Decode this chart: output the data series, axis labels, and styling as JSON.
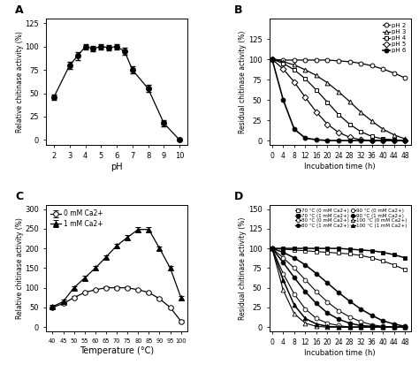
{
  "A": {
    "pH": [
      2,
      3,
      3.5,
      4,
      4.5,
      5,
      5.5,
      6,
      6.5,
      7,
      8,
      9,
      10
    ],
    "activity": [
      46,
      80,
      90,
      100,
      98,
      100,
      99,
      100,
      95,
      75,
      55,
      18,
      0
    ],
    "yerr": [
      3,
      4,
      4,
      3,
      3,
      3,
      3,
      3,
      4,
      4,
      4,
      3,
      1
    ],
    "ylabel": "Relative chitinase activity (%)",
    "xlabel": "pH",
    "ylim": [
      -5,
      130
    ],
    "yticks": [
      0,
      25,
      50,
      75,
      100,
      125
    ],
    "xticks": [
      2,
      3,
      4,
      5,
      6,
      7,
      8,
      9,
      10
    ],
    "xlim": [
      1.5,
      10.5
    ]
  },
  "B": {
    "time": [
      0,
      4,
      8,
      12,
      16,
      20,
      24,
      28,
      32,
      36,
      40,
      44,
      48
    ],
    "series": {
      "pH 2": [
        100,
        99,
        99,
        99,
        99,
        99,
        98,
        97,
        95,
        92,
        88,
        83,
        77
      ],
      "pH 3": [
        100,
        97,
        93,
        87,
        80,
        71,
        60,
        48,
        35,
        24,
        14,
        7,
        2
      ],
      "pH 4": [
        100,
        95,
        87,
        76,
        62,
        47,
        32,
        20,
        11,
        5,
        2,
        1,
        0
      ],
      "pH 5": [
        100,
        88,
        72,
        53,
        35,
        20,
        10,
        4,
        1,
        0,
        0,
        0,
        0
      ],
      "pH 6": [
        100,
        50,
        14,
        3,
        1,
        0,
        0,
        0,
        0,
        0,
        0,
        0,
        0
      ]
    },
    "markers": {
      "pH 2": "o",
      "pH 3": "^",
      "pH 4": "s",
      "pH 5": "D",
      "pH 6": "o"
    },
    "filled": {
      "pH 2": false,
      "pH 3": false,
      "pH 4": false,
      "pH 5": false,
      "pH 6": true
    },
    "ylabel": "Residual chitinase activity (%)",
    "xlabel": "Incubation time (h)",
    "ylim": [
      -5,
      150
    ],
    "yticks": [
      0,
      25,
      50,
      75,
      100,
      125
    ],
    "xlim": [
      -1,
      50
    ],
    "xticks": [
      0,
      4,
      8,
      12,
      16,
      20,
      24,
      28,
      32,
      36,
      40,
      44,
      48
    ]
  },
  "C": {
    "temp": [
      40,
      45,
      50,
      55,
      60,
      65,
      70,
      75,
      80,
      85,
      90,
      95,
      100
    ],
    "series": {
      "0 mM Ca2+": [
        50,
        60,
        75,
        88,
        95,
        100,
        100,
        100,
        95,
        88,
        72,
        50,
        15
      ],
      "1 mM Ca2+": [
        52,
        65,
        100,
        125,
        150,
        178,
        207,
        228,
        248,
        248,
        200,
        150,
        75
      ]
    },
    "yerr": {
      "0 mM Ca2+": [
        3,
        3,
        3,
        3,
        3,
        3,
        3,
        3,
        3,
        3,
        3,
        3,
        3
      ],
      "1 mM Ca2+": [
        4,
        4,
        4,
        5,
        5,
        5,
        5,
        5,
        5,
        5,
        5,
        5,
        5
      ]
    },
    "ylabel": "Relative chitinase activity (%)",
    "xlabel": "Temperature (°C)",
    "ylim": [
      -10,
      310
    ],
    "yticks": [
      0,
      50,
      100,
      150,
      200,
      250,
      300
    ],
    "xticks": [
      40,
      45,
      50,
      55,
      60,
      65,
      70,
      75,
      80,
      85,
      90,
      95,
      100
    ],
    "xlim": [
      37,
      103
    ]
  },
  "D": {
    "time": [
      0,
      4,
      8,
      12,
      16,
      20,
      24,
      28,
      32,
      36,
      40,
      44,
      48
    ],
    "series": {
      "70C_0mM": [
        100,
        99,
        98,
        97,
        96,
        95,
        94,
        93,
        91,
        88,
        84,
        79,
        73
      ],
      "70C_1mM": [
        100,
        100,
        100,
        100,
        100,
        100,
        100,
        99,
        98,
        97,
        95,
        92,
        88
      ],
      "80C_0mM": [
        100,
        88,
        75,
        60,
        45,
        32,
        21,
        13,
        7,
        3,
        1,
        0,
        0
      ],
      "80C_1mM": [
        100,
        95,
        88,
        79,
        68,
        56,
        44,
        33,
        23,
        15,
        8,
        4,
        1
      ],
      "90C_0mM": [
        100,
        68,
        42,
        23,
        11,
        5,
        2,
        0,
        0,
        0,
        0,
        0,
        0
      ],
      "90C_1mM": [
        100,
        82,
        63,
        45,
        30,
        18,
        10,
        5,
        2,
        1,
        0,
        0,
        0
      ],
      "100C_0mM": [
        100,
        47,
        17,
        5,
        1,
        0,
        0,
        0,
        0,
        0,
        0,
        0,
        0
      ],
      "100C_1mM": [
        100,
        60,
        28,
        11,
        4,
        1,
        0,
        0,
        0,
        0,
        0,
        0,
        0
      ]
    },
    "ylabel": "Residual chitinase activity (%)",
    "xlabel": "Incubation time (h)",
    "ylim": [
      -5,
      155
    ],
    "yticks": [
      0,
      25,
      50,
      75,
      100,
      125,
      150
    ],
    "xlim": [
      -1,
      50
    ],
    "xticks": [
      0,
      4,
      8,
      12,
      16,
      20,
      24,
      28,
      32,
      36,
      40,
      44,
      48
    ]
  }
}
